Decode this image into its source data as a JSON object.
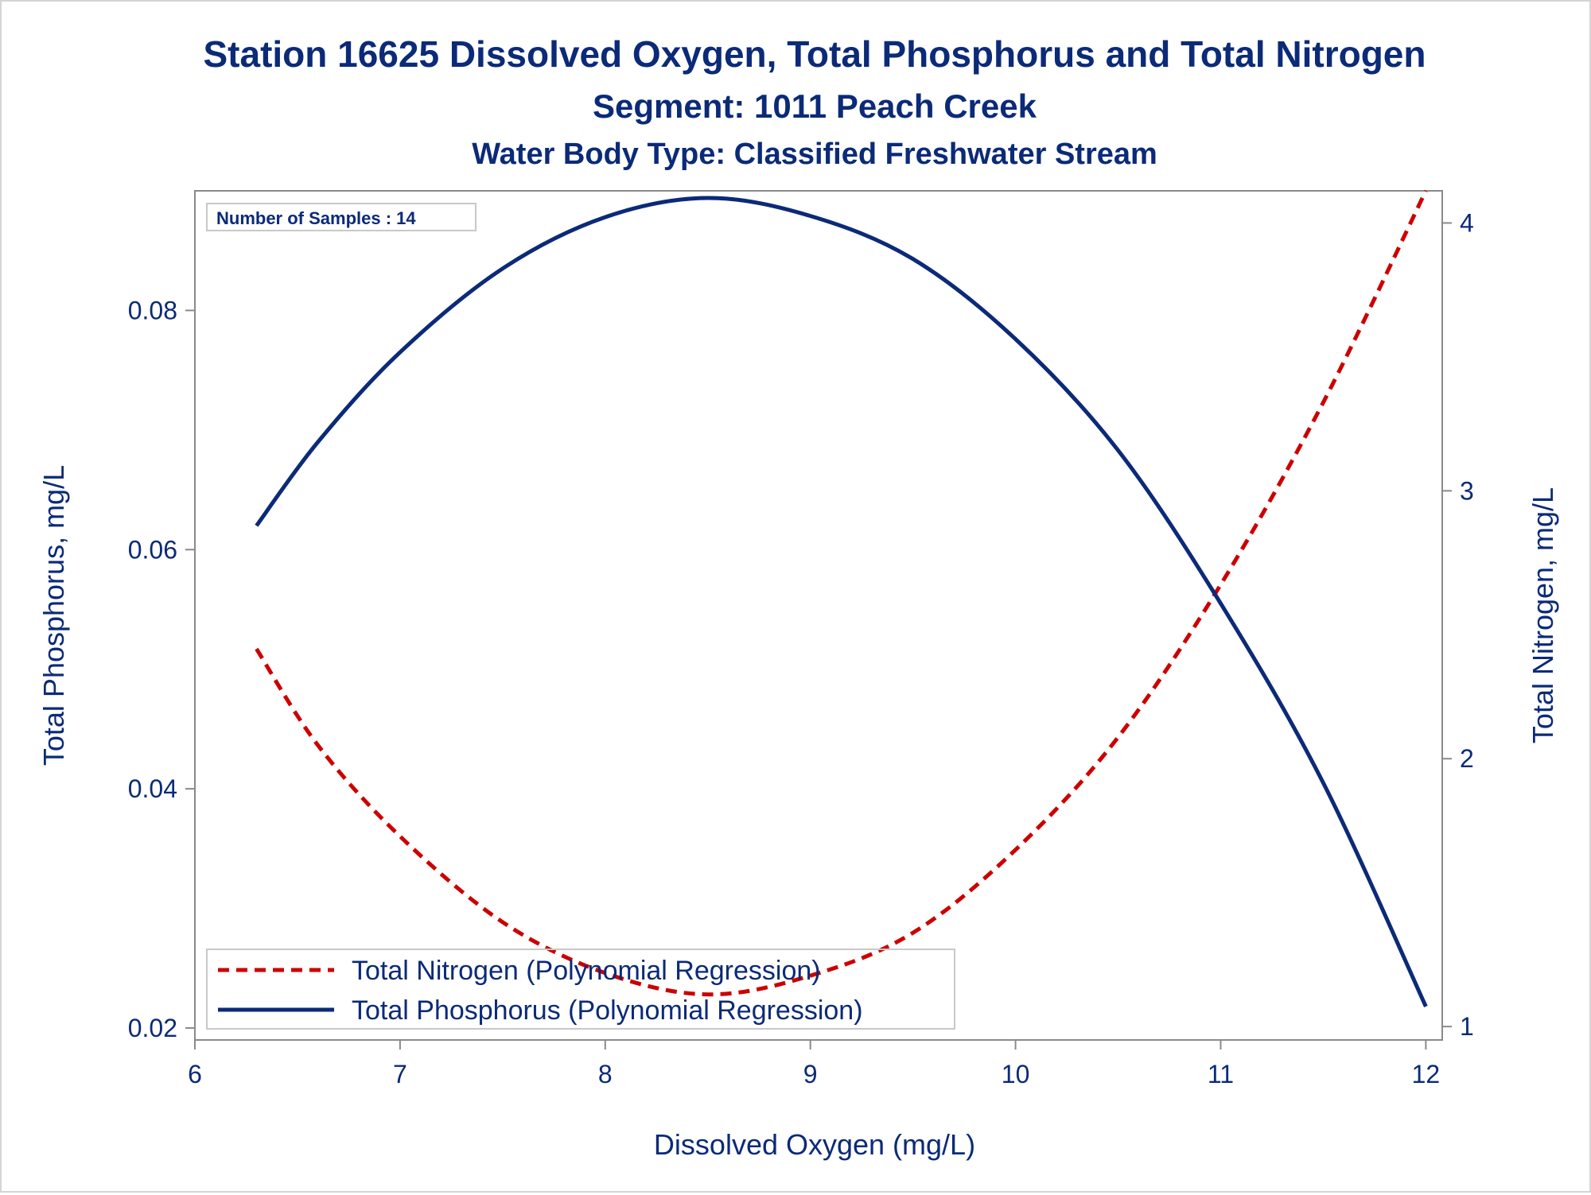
{
  "chart_data": {
    "type": "line",
    "title": "Station 16625  Dissolved Oxygen, Total Phosphorus and Total Nitrogen",
    "subtitle": "Segment: 1011  Peach Creek",
    "subtitle2": "Water Body Type: Classified Freshwater Stream",
    "xlabel": "Dissolved Oxygen (mg/L)",
    "ylabel": "Total Phosphorus, mg/L",
    "y2label": "Total Nitrogen, mg/L",
    "xlim": [
      6,
      12.08
    ],
    "ylim": [
      0.019,
      0.09
    ],
    "y2lim": [
      0.95,
      4.12
    ],
    "xticks": [
      "6",
      "7",
      "8",
      "9",
      "10",
      "11",
      "12"
    ],
    "yticks": [
      "0.02",
      "0.04",
      "0.06",
      "0.08"
    ],
    "y2ticks": [
      "1",
      "2",
      "3",
      "4"
    ],
    "grid": false,
    "inset_text": "Number of Samples : 14",
    "legend_position": "bottom-left",
    "legend": [
      {
        "name": "Total Nitrogen (Polynomial Regression)",
        "color": "#cc0000",
        "style": "dashed"
      },
      {
        "name": "Total Phosphorus (Polynomial Regression)",
        "color": "#0b2a78",
        "style": "solid"
      }
    ],
    "series": [
      {
        "name": "Total Nitrogen (Polynomial Regression)",
        "axis": "right",
        "color": "#cc0000",
        "style": "dashed",
        "points": [
          [
            6.3,
            2.41
          ],
          [
            6.6,
            2.05
          ],
          [
            7.0,
            1.71
          ],
          [
            7.5,
            1.39
          ],
          [
            8.0,
            1.2
          ],
          [
            8.5,
            1.12
          ],
          [
            9.0,
            1.19
          ],
          [
            9.5,
            1.35
          ],
          [
            10.0,
            1.66
          ],
          [
            10.5,
            2.08
          ],
          [
            11.0,
            2.65
          ],
          [
            11.5,
            3.33
          ],
          [
            12.0,
            4.12
          ]
        ]
      },
      {
        "name": "Total Phosphorus (Polynomial Regression)",
        "axis": "left",
        "color": "#0b2a78",
        "style": "solid",
        "points": [
          [
            6.3,
            0.062
          ],
          [
            6.6,
            0.069
          ],
          [
            7.0,
            0.0765
          ],
          [
            7.5,
            0.0835
          ],
          [
            8.0,
            0.0878
          ],
          [
            8.5,
            0.0894
          ],
          [
            9.0,
            0.0879
          ],
          [
            9.5,
            0.0843
          ],
          [
            10.0,
            0.0776
          ],
          [
            10.5,
            0.0683
          ],
          [
            11.0,
            0.0555
          ],
          [
            11.5,
            0.0405
          ],
          [
            12.0,
            0.0218
          ]
        ]
      }
    ]
  }
}
